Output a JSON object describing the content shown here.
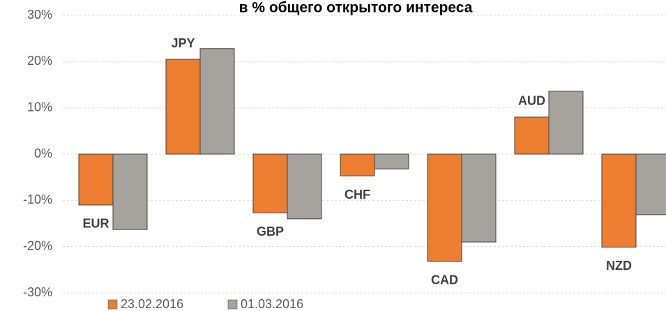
{
  "chart_data": {
    "type": "bar",
    "title": "в % общего открытого интереса",
    "categories": [
      "EUR",
      "JPY",
      "GBP",
      "CHF",
      "CAD",
      "AUD",
      "NZD"
    ],
    "series": [
      {
        "name": "23.02.2016",
        "color": "#ed7d31",
        "values": [
          -11.0,
          20.5,
          -12.7,
          -4.7,
          -23.2,
          8.0,
          -20.1
        ]
      },
      {
        "name": "01.03.2016",
        "color": "#a6a29e",
        "values": [
          -16.3,
          22.8,
          -14.0,
          -3.2,
          -19.0,
          13.6,
          -13.1
        ]
      }
    ],
    "ylim": [
      -30,
      30
    ],
    "yticks": [
      {
        "value": -30,
        "label": "-30%"
      },
      {
        "value": -20,
        "label": "-20%"
      },
      {
        "value": -10,
        "label": "-10%"
      },
      {
        "value": 0,
        "label": "0%"
      },
      {
        "value": 10,
        "label": "10%"
      },
      {
        "value": 20,
        "label": "20%"
      },
      {
        "value": 30,
        "label": "30%"
      }
    ],
    "grid": true,
    "legend": "bottom-left"
  }
}
